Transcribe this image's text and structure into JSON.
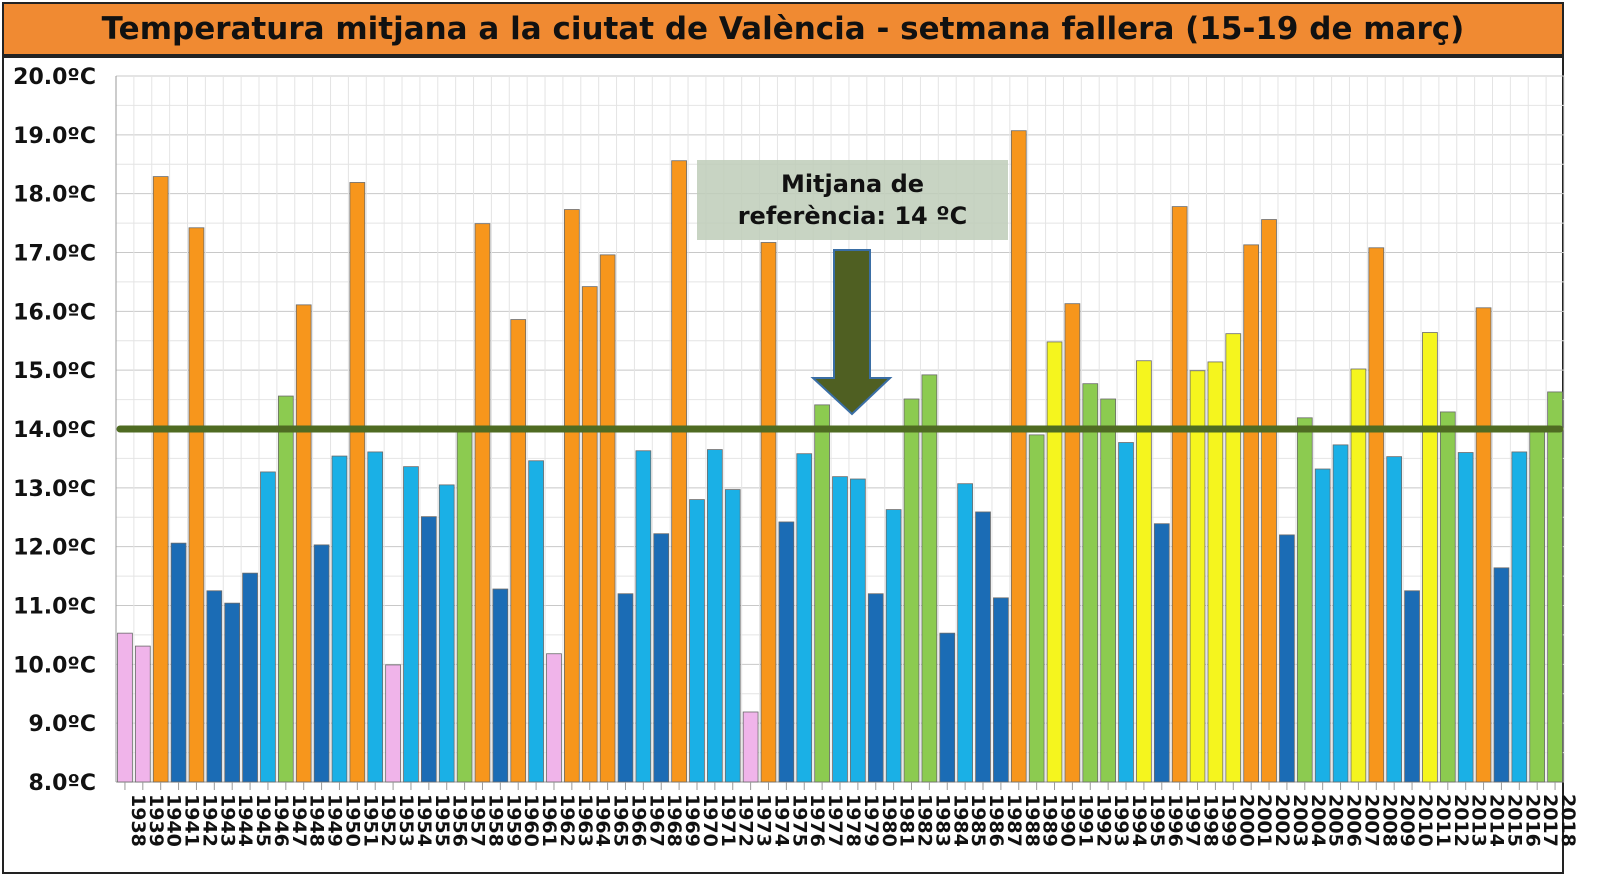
{
  "chart_data": {
    "type": "bar",
    "title": "Temperatura mitjana a la ciutat de València - setmana fallera (15-19 de març)",
    "xlabel": "",
    "ylabel": "",
    "ylim": [
      8,
      20
    ],
    "yticks": [
      "8.0ºC",
      "9.0ºC",
      "10.0ºC",
      "11.0ºC",
      "12.0ºC",
      "13.0ºC",
      "14.0ºC",
      "15.0ºC",
      "16.0ºC",
      "17.0ºC",
      "18.0ºC",
      "19.0ºC",
      "20.0ºC"
    ],
    "grid": true,
    "reference_line": {
      "value": 14,
      "color": "#4f6b22"
    },
    "annotation": {
      "line1": "Mitjana de",
      "line2": "referència: 14 ºC"
    },
    "color_classes": {
      "p": "#f0b4ea",
      "d": "#1b6cb5",
      "l": "#1ab0e6",
      "g": "#8ccb50",
      "y": "#f5f51e",
      "o": "#f7961c"
    },
    "categories": [
      "1938",
      "1939",
      "1940",
      "1941",
      "1942",
      "1943",
      "1944",
      "1945",
      "1946",
      "1947",
      "1948",
      "1949",
      "1950",
      "1951",
      "1952",
      "1953",
      "1954",
      "1955",
      "1956",
      "1957",
      "1958",
      "1959",
      "1960",
      "1961",
      "1962",
      "1963",
      "1964",
      "1965",
      "1966",
      "1967",
      "1968",
      "1969",
      "1970",
      "1971",
      "1972",
      "1973",
      "1974",
      "1975",
      "1976",
      "1977",
      "1978",
      "1979",
      "1980",
      "1981",
      "1982",
      "1983",
      "1984",
      "1985",
      "1986",
      "1987",
      "1988",
      "1989",
      "1990",
      "1991",
      "1992",
      "1993",
      "1994",
      "1995",
      "1996",
      "1997",
      "1998",
      "1999",
      "2000",
      "2001",
      "2002",
      "2003",
      "2004",
      "2005",
      "2006",
      "2007",
      "2008",
      "2009",
      "2010",
      "2011",
      "2012",
      "2013",
      "2014",
      "2015",
      "2016",
      "2017",
      "2018"
    ],
    "values": [
      10.53,
      10.31,
      18.29,
      12.06,
      17.42,
      11.25,
      11.04,
      11.55,
      13.27,
      14.56,
      16.11,
      12.03,
      13.54,
      18.19,
      13.61,
      9.99,
      13.36,
      12.51,
      13.05,
      13.97,
      17.49,
      11.28,
      15.86,
      13.46,
      10.18,
      17.73,
      16.42,
      16.96,
      11.2,
      13.63,
      12.22,
      18.56,
      12.8,
      13.65,
      12.97,
      9.19,
      17.17,
      12.42,
      13.58,
      14.41,
      13.19,
      13.15,
      11.2,
      12.63,
      14.51,
      14.92,
      10.53,
      13.07,
      12.59,
      11.13,
      19.07,
      13.9,
      15.48,
      16.13,
      14.77,
      14.51,
      13.77,
      15.16,
      12.39,
      17.78,
      14.99,
      15.14,
      15.62,
      17.13,
      17.56,
      12.2,
      14.19,
      13.32,
      13.73,
      15.02,
      17.08,
      13.53,
      11.25,
      15.64,
      14.29,
      13.6,
      16.06,
      11.64,
      13.61,
      13.95,
      14.63
    ],
    "classes": [
      "p",
      "p",
      "o",
      "d",
      "o",
      "d",
      "d",
      "d",
      "l",
      "g",
      "o",
      "d",
      "l",
      "o",
      "l",
      "p",
      "l",
      "d",
      "l",
      "g",
      "o",
      "d",
      "o",
      "l",
      "p",
      "o",
      "o",
      "o",
      "d",
      "l",
      "d",
      "o",
      "l",
      "l",
      "l",
      "p",
      "o",
      "d",
      "l",
      "g",
      "l",
      "l",
      "d",
      "l",
      "g",
      "g",
      "d",
      "l",
      "d",
      "d",
      "o",
      "g",
      "y",
      "o",
      "g",
      "g",
      "l",
      "y",
      "d",
      "o",
      "y",
      "y",
      "y",
      "o",
      "o",
      "d",
      "g",
      "l",
      "l",
      "y",
      "o",
      "l",
      "d",
      "y",
      "g",
      "l",
      "o",
      "d",
      "l",
      "g",
      "g"
    ]
  }
}
